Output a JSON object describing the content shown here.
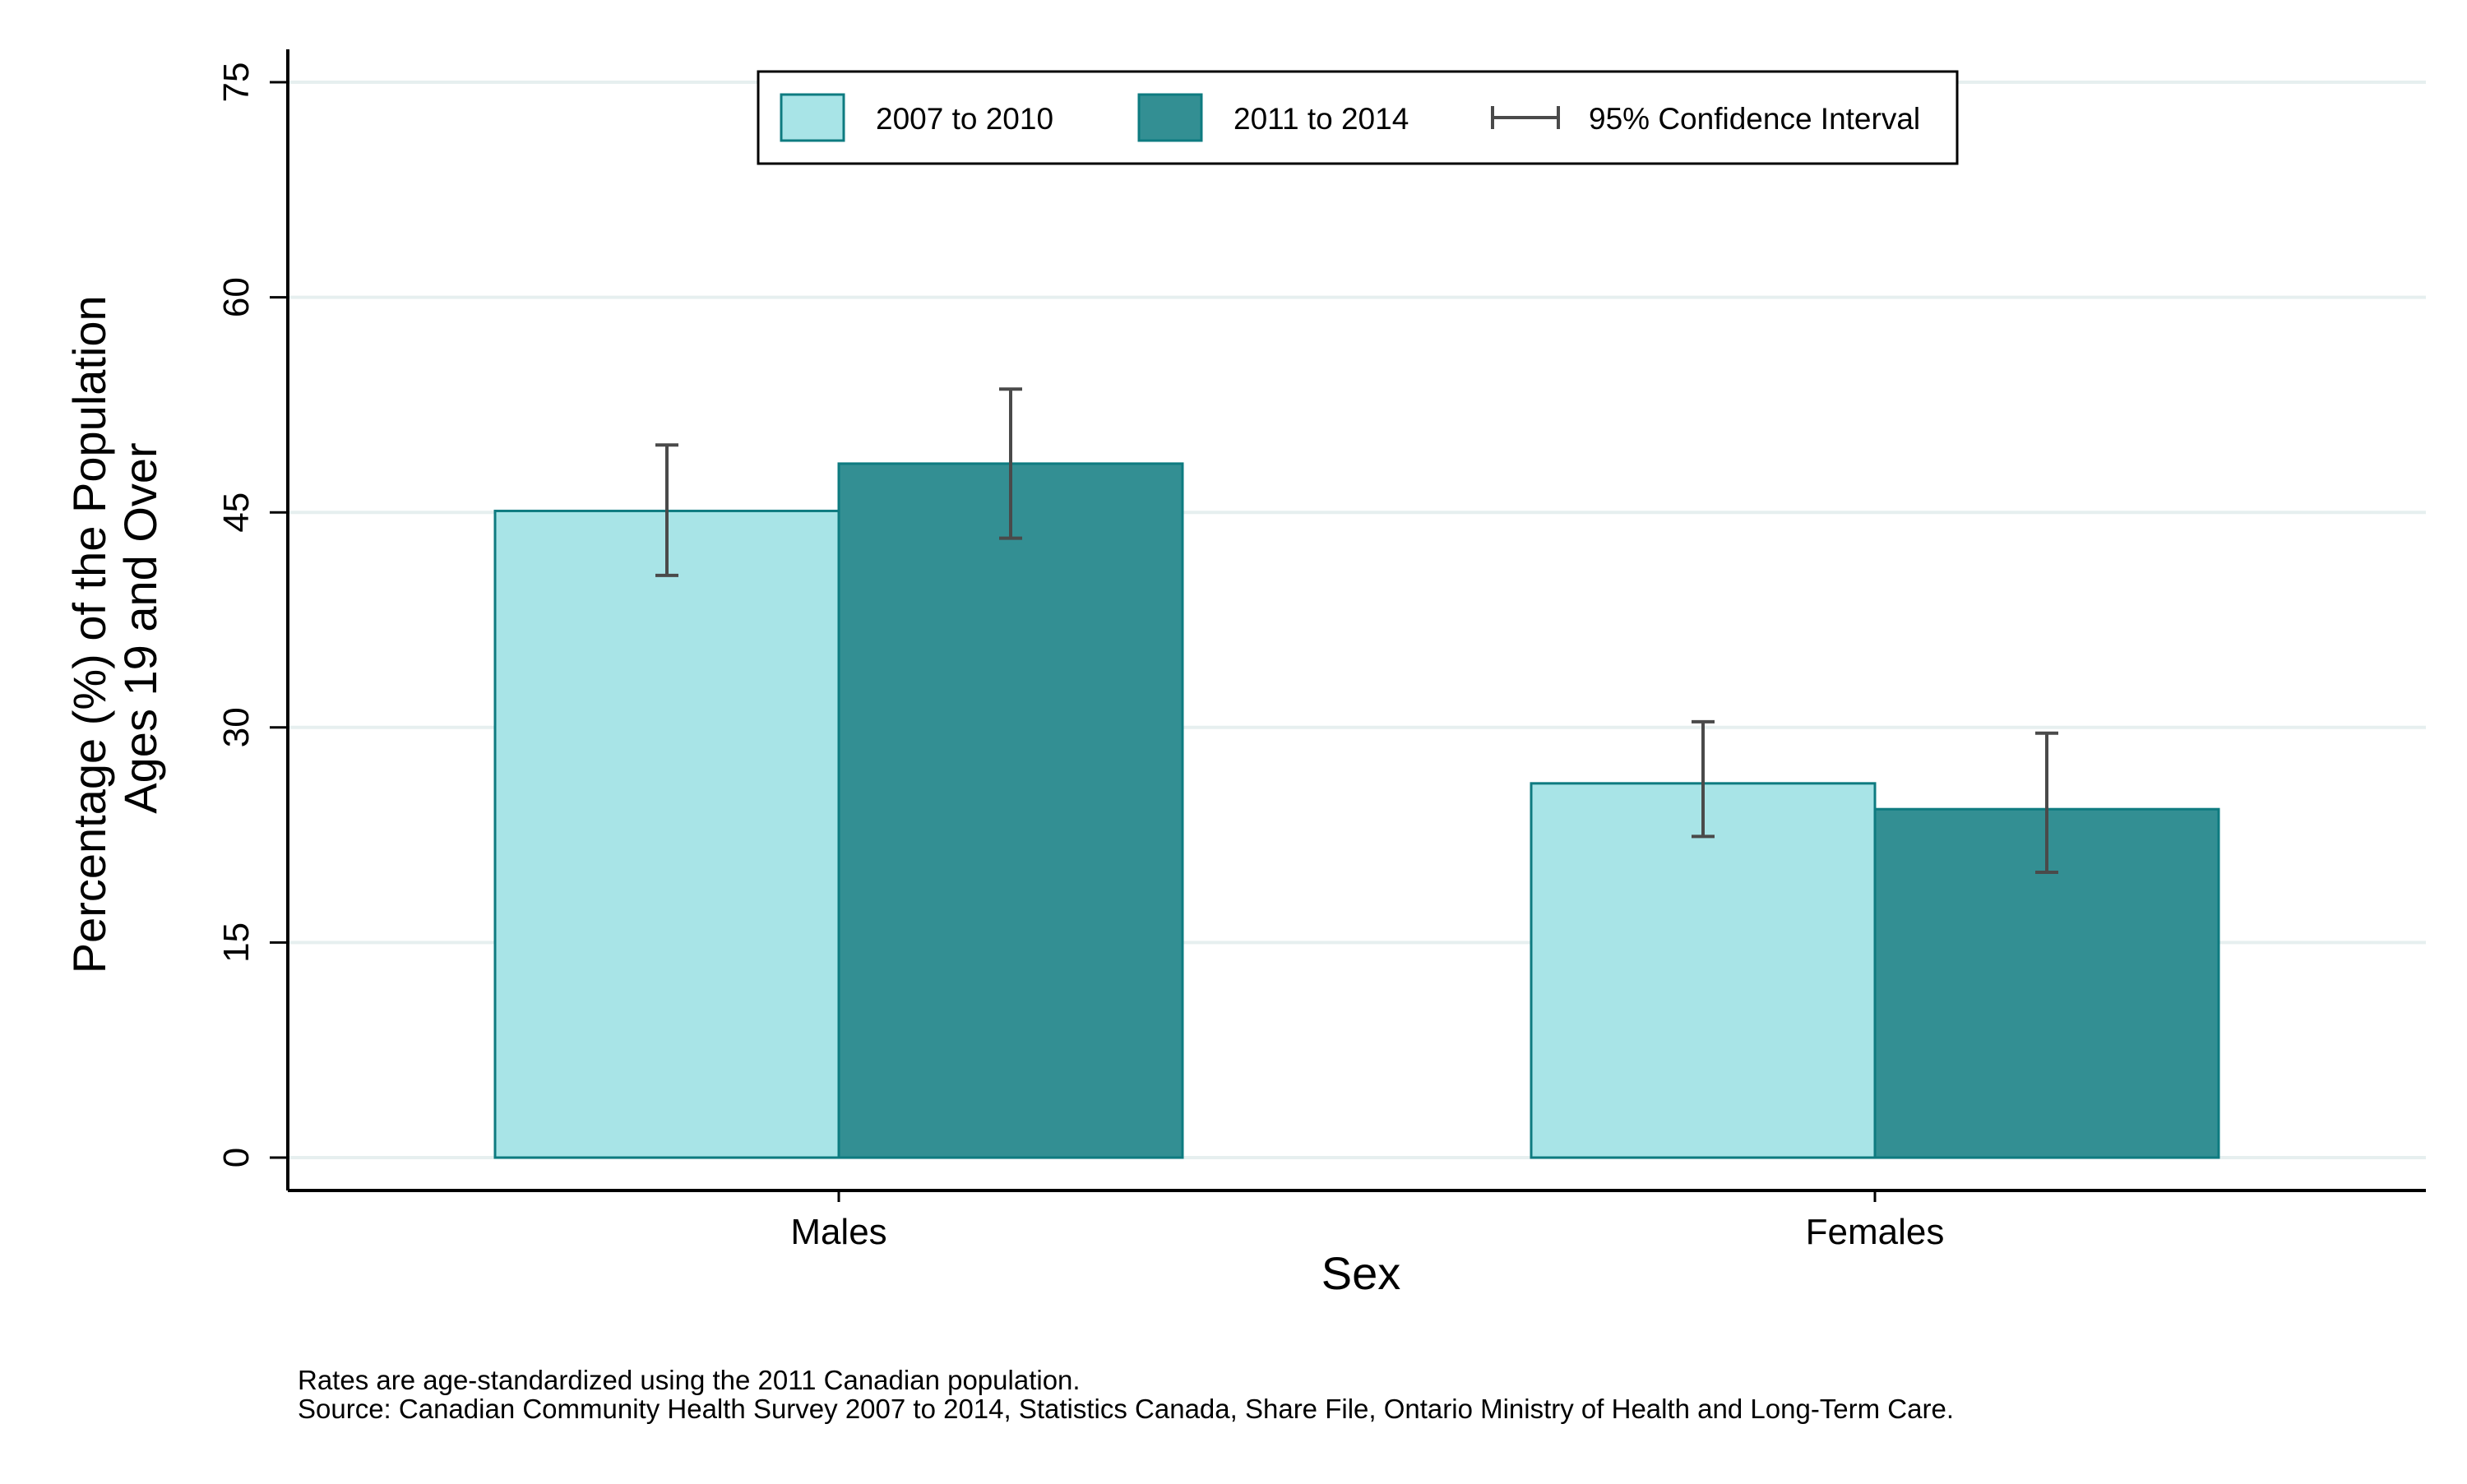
{
  "chart_data": {
    "type": "bar",
    "xlabel": "Sex",
    "ylabel_lines": [
      "Percentage (%) of the Population",
      "Ages 19 and Over"
    ],
    "categories": [
      "Males",
      "Females"
    ],
    "ylim": [
      0,
      75
    ],
    "yticks": [
      0,
      15,
      30,
      45,
      60,
      75
    ],
    "grid": true,
    "legend_position": "top-center",
    "series": [
      {
        "name": "2007 to 2010",
        "color": "#a8e4e7",
        "values": [
          45.1,
          26.1
        ],
        "ci_low": [
          40.6,
          22.4
        ],
        "ci_high": [
          49.7,
          30.4
        ]
      },
      {
        "name": "2011 to 2014",
        "color": "#338f93",
        "values": [
          48.4,
          24.3
        ],
        "ci_low": [
          43.2,
          19.9
        ],
        "ci_high": [
          53.6,
          29.6
        ]
      }
    ],
    "ci_legend_label": "95% Confidence Interval"
  },
  "footnotes": [
    "Rates are age-standardized using the 2011 Canadian population.",
    "Source: Canadian Community Health Survey 2007 to 2014, Statistics Canada, Share File, Ontario Ministry of Health and Long-Term Care."
  ]
}
